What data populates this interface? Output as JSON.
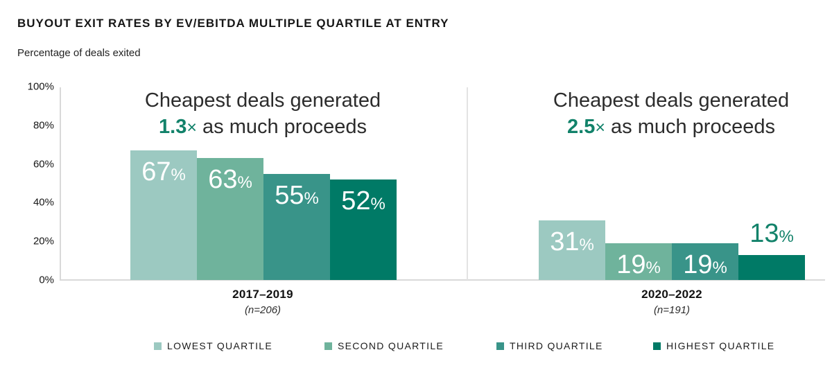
{
  "title": "BUYOUT EXIT RATES BY EV/EBITDA MULTIPLE QUARTILE AT ENTRY",
  "subtitle": "Percentage of deals exited",
  "colors": {
    "series": [
      "#9cc9c1",
      "#6fb39c",
      "#399489",
      "#007a66"
    ],
    "accent": "#12826a",
    "label_on_bar": "#ffffff",
    "axis_line": "#d9d9d9",
    "divider_line": "#e3e3e3",
    "text_dark": "#2c2c2c"
  },
  "chart_data": {
    "type": "bar",
    "title": "Buyout exit rates by EV/EBITDA multiple quartile at entry",
    "ylabel": "Percentage of deals exited",
    "ylim": [
      0,
      100
    ],
    "grid": false,
    "legend_position": "bottom",
    "value_suffix": "%",
    "yticks": [
      {
        "label": "100%",
        "value": 100
      },
      {
        "label": "80%",
        "value": 80
      },
      {
        "label": "60%",
        "value": 60
      },
      {
        "label": "40%",
        "value": 40
      },
      {
        "label": "20%",
        "value": 20
      },
      {
        "label": "0%",
        "value": 0
      }
    ],
    "series_names": [
      "Lowest quartile",
      "Second quartile",
      "Third quartile",
      "Highest quartile"
    ],
    "groups": [
      {
        "label": "2017–2019",
        "sublabel": "(n=206)",
        "values": [
          67,
          63,
          55,
          52
        ],
        "annotation": {
          "line1": "Cheapest deals generated",
          "multiple": "1.3",
          "times": "×",
          "suffix": " as much proceeds"
        }
      },
      {
        "label": "2020–2022",
        "sublabel": "(n=191)",
        "values": [
          31,
          19,
          19,
          13
        ],
        "annotation": {
          "line1": "Cheapest deals generated",
          "multiple": "2.5",
          "times": "×",
          "suffix": " as much proceeds"
        }
      }
    ]
  },
  "legend": [
    {
      "label": "LOWEST QUARTILE",
      "color": "#9cc9c1"
    },
    {
      "label": "SECOND QUARTILE",
      "color": "#6fb39c"
    },
    {
      "label": "THIRD QUARTILE",
      "color": "#399489"
    },
    {
      "label": "HIGHEST QUARTILE",
      "color": "#007a66"
    }
  ]
}
